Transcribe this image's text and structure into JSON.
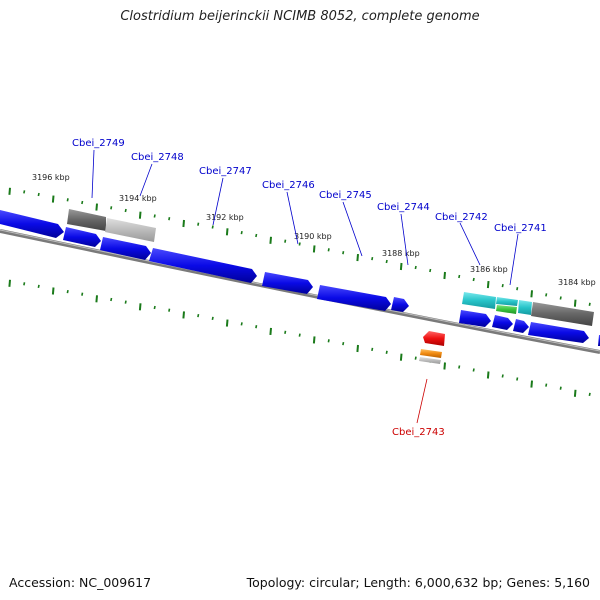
{
  "title": "Clostridium beijerinckii NCIMB 8052, complete genome",
  "accession": "Accession: NC_009617",
  "topology": "Topology: circular; Length: 6,000,632 bp; Genes: 5,160",
  "colors": {
    "cds": "#0a0ae6",
    "trna": "#ee1111",
    "rrna": "#f08a10",
    "grey_dark": "#666666",
    "grey_light": "#bbbbbb",
    "cyan": "#27c4c9",
    "green": "#39c43b",
    "tick": "#1a7a1a",
    "label_forward": "#0000cc",
    "label_reverse": "#cc0000"
  },
  "ticks": [
    "3196 kbp",
    "3194 kbp",
    "3192 kbp",
    "3190 kbp",
    "3188 kbp",
    "3186 kbp",
    "3184 kbp"
  ],
  "genes": [
    {
      "id": "Cbei_2749",
      "color": "label_forward"
    },
    {
      "id": "Cbei_2748",
      "color": "label_forward"
    },
    {
      "id": "Cbei_2747",
      "color": "label_forward"
    },
    {
      "id": "Cbei_2746",
      "color": "label_forward"
    },
    {
      "id": "Cbei_2745",
      "color": "label_forward"
    },
    {
      "id": "Cbei_2744",
      "color": "label_forward"
    },
    {
      "id": "Cbei_2742",
      "color": "label_forward"
    },
    {
      "id": "Cbei_2741",
      "color": "label_forward"
    },
    {
      "id": "Cbei_2743",
      "color": "label_reverse"
    }
  ]
}
